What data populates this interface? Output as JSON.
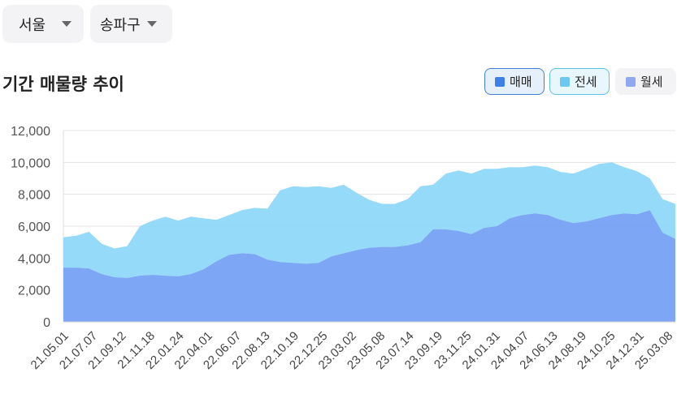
{
  "filters": {
    "city": "서울",
    "district": "송파구"
  },
  "section_title": "기간 매물량 추이",
  "legend": [
    {
      "label": "매매",
      "color": "#3f80e6",
      "active": true
    },
    {
      "label": "전세",
      "color": "#6cc8f0",
      "active": true
    },
    {
      "label": "월세",
      "color": "#8fa8ee",
      "active": false
    }
  ],
  "chart_data": {
    "type": "area",
    "stacked": true,
    "ylim": [
      0,
      12000
    ],
    "yticks": [
      "0",
      "2,000",
      "4,000",
      "6,000",
      "8,000",
      "10,000",
      "12,000"
    ],
    "ytick_values": [
      0,
      2000,
      4000,
      6000,
      8000,
      10000,
      12000
    ],
    "grid": true,
    "xtick_labels": [
      "21.05.01",
      "21.07.07",
      "21.09.12",
      "21.11.18",
      "22.01.24",
      "22.04.01",
      "22.06.07",
      "22.08.13",
      "22.10.19",
      "22.12.25",
      "23.03.02",
      "23.05.08",
      "23.07.14",
      "23.09.19",
      "23.11.25",
      "24.01.31",
      "24.04.07",
      "24.06.13",
      "24.08.19",
      "24.10.25",
      "24.12.31",
      "25.03.08"
    ],
    "x": [
      "21.05.01",
      "21.06.01",
      "21.07.01",
      "21.08.01",
      "21.09.01",
      "21.10.01",
      "21.11.01",
      "21.12.01",
      "22.01.01",
      "22.02.01",
      "22.03.01",
      "22.04.01",
      "22.05.01",
      "22.06.01",
      "22.07.01",
      "22.08.01",
      "22.09.01",
      "22.10.01",
      "22.11.01",
      "22.12.01",
      "23.01.01",
      "23.02.01",
      "23.03.01",
      "23.04.01",
      "23.05.01",
      "23.06.01",
      "23.07.01",
      "23.08.01",
      "23.09.01",
      "23.10.01",
      "23.11.01",
      "23.12.01",
      "24.01.01",
      "24.02.01",
      "24.03.01",
      "24.04.01",
      "24.05.01",
      "24.06.01",
      "24.07.01",
      "24.08.01",
      "24.09.01",
      "24.10.01",
      "24.11.01",
      "24.12.01",
      "25.01.01",
      "25.02.01",
      "25.03.01",
      "25.04.01",
      "25.05.01"
    ],
    "series": [
      {
        "name": "매매",
        "values": [
          3400,
          3400,
          3350,
          3000,
          2800,
          2750,
          2900,
          2950,
          2900,
          2850,
          3000,
          3300,
          3800,
          4200,
          4300,
          4250,
          3900,
          3750,
          3700,
          3650,
          3700,
          4100,
          4300,
          4500,
          4650,
          4700,
          4700,
          4800,
          5000,
          5800,
          5800,
          5700,
          5500,
          5900,
          6000,
          6500,
          6700,
          6800,
          6700,
          6400,
          6200,
          6300,
          6500,
          6700,
          6800,
          6750,
          7000,
          5600,
          5200
        ]
      },
      {
        "name": "전세",
        "values": [
          1900,
          2000,
          2300,
          1900,
          1800,
          2000,
          3100,
          3400,
          3700,
          3500,
          3600,
          3200,
          2600,
          2500,
          2700,
          2900,
          3200,
          4500,
          4800,
          4800,
          4800,
          4300,
          4300,
          3600,
          3000,
          2700,
          2700,
          2900,
          3500,
          2800,
          3500,
          3800,
          3800,
          3700,
          3600,
          3200,
          3000,
          3000,
          3000,
          3000,
          3100,
          3300,
          3400,
          3300,
          2900,
          2700,
          2000,
          2100,
          2200
        ]
      }
    ]
  }
}
